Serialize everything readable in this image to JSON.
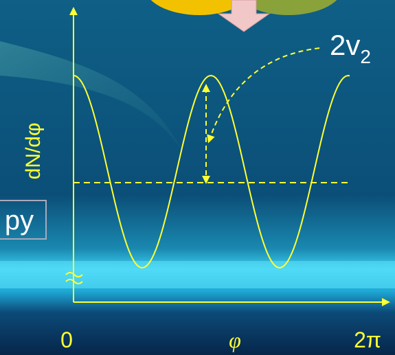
{
  "annotation": {
    "text": "2v",
    "subscript": "2"
  },
  "y_axis_label": "dN/dφ",
  "box_text": "py",
  "x_axis_labels": {
    "start": "0",
    "middle": "φ",
    "end": "2π"
  }
}
